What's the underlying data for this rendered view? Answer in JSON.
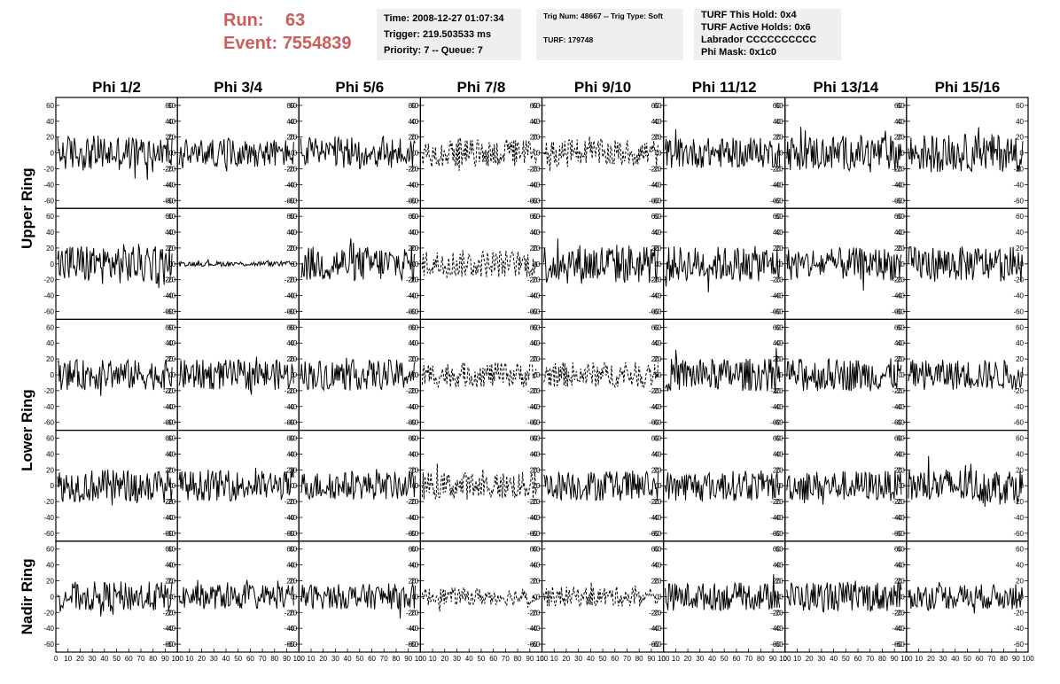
{
  "header": {
    "run_label": "Run:",
    "run_value": "63",
    "event_label": "Event:",
    "event_value": "7554839",
    "accent_color": "#cd5c5c"
  },
  "info_boxes": {
    "time": "Time: 2008-12-27 01:07:34",
    "trigger": "Trigger: 219.503533 ms",
    "priority": "Priority: 7 -- Queue: 7",
    "trig_num": "Trig Num: 48667 -- Trig Type: Soft",
    "turf": "TURF: 179748",
    "turf_this_hold": "TURF This Hold: 0x4",
    "turf_active_holds": "TURF Active Holds: 0x6",
    "labrador": "Labrador CCCCCCCCCC",
    "phi_mask": "Phi Mask: 0x1c0"
  },
  "chart_data": {
    "type": "line",
    "columns": [
      "Phi 1/2",
      "Phi 3/4",
      "Phi 5/6",
      "Phi 7/8",
      "Phi 9/10",
      "Phi 11/12",
      "Phi 13/14",
      "Phi 15/16"
    ],
    "rows": [
      "Upper Ring",
      "Lower Ring",
      "Nadir Ring"
    ],
    "ylim": [
      -70,
      70
    ],
    "yticks": [
      -60,
      -40,
      -20,
      0,
      20,
      40,
      60
    ],
    "xlim": [
      0,
      100
    ],
    "xticks": [
      0,
      10,
      20,
      30,
      40,
      50,
      60,
      70,
      80,
      90,
      100
    ],
    "panel_rows": 5,
    "amplitudes": [
      [
        14,
        11,
        13,
        11,
        11,
        12,
        14,
        15
      ],
      [
        16,
        2,
        14,
        11,
        16,
        14,
        13,
        14
      ],
      [
        12,
        12,
        12,
        10,
        10,
        13,
        13,
        12
      ],
      [
        13,
        12,
        11,
        11,
        12,
        12,
        12,
        14
      ],
      [
        12,
        10,
        10,
        7,
        8,
        11,
        12,
        10
      ]
    ],
    "dashed": [
      [
        false,
        false,
        false,
        true,
        true,
        false,
        false,
        false
      ],
      [
        false,
        false,
        false,
        true,
        false,
        false,
        false,
        false
      ],
      [
        false,
        false,
        false,
        true,
        true,
        false,
        false,
        false
      ],
      [
        false,
        false,
        false,
        true,
        false,
        false,
        false,
        false
      ],
      [
        false,
        false,
        false,
        true,
        true,
        false,
        false,
        false
      ]
    ],
    "grid": false,
    "line_color": "#000000"
  }
}
